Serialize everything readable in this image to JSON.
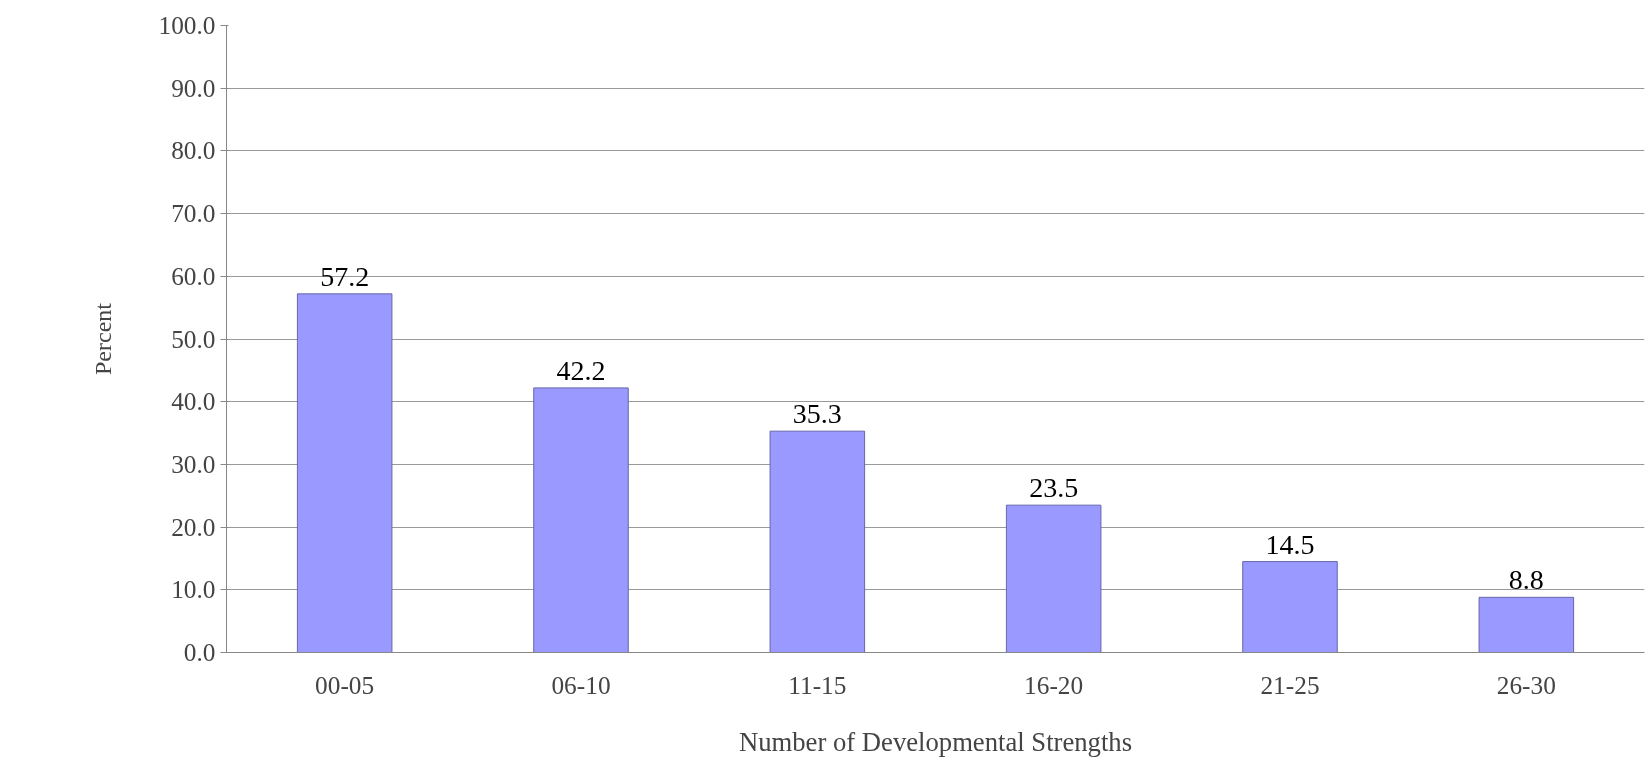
{
  "chart_data": {
    "type": "bar",
    "xlabel": "Number of Developmental Strengths",
    "ylabel": "Percent",
    "categories": [
      "00-05",
      "06-10",
      "11-15",
      "16-20",
      "21-25",
      "26-30"
    ],
    "values": [
      57.2,
      42.2,
      35.3,
      23.5,
      14.5,
      8.8
    ],
    "color": "#9999ff",
    "data_labels": true,
    "grid": "y",
    "ylim": [
      0,
      100
    ],
    "yticks": [
      {
        "value": 0,
        "label": "0.0"
      },
      {
        "value": 10,
        "label": "10.0"
      },
      {
        "value": 20,
        "label": "20.0"
      },
      {
        "value": 30,
        "label": "30.0"
      },
      {
        "value": 40,
        "label": "40.0"
      },
      {
        "value": 50,
        "label": "50.0"
      },
      {
        "value": 60,
        "label": "60.0"
      },
      {
        "value": 70,
        "label": "70.0"
      },
      {
        "value": 80,
        "label": "80.0"
      },
      {
        "value": 90,
        "label": "90.0"
      },
      {
        "value": 100,
        "label": "100.0"
      }
    ]
  }
}
